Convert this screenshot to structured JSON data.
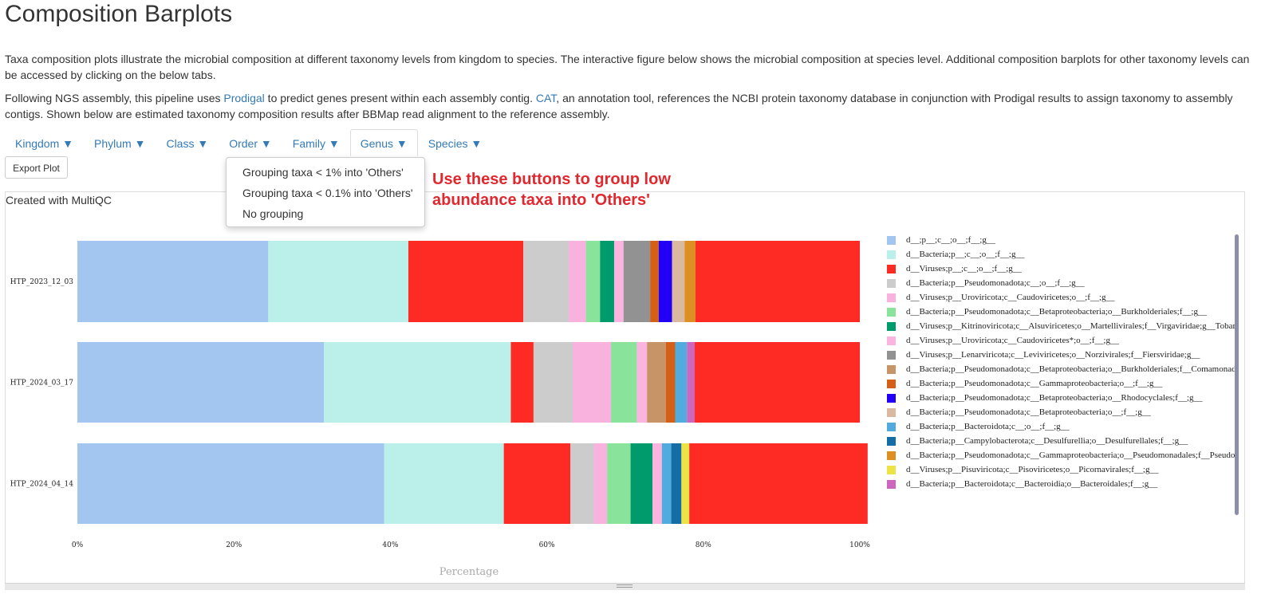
{
  "page": {
    "title": "Composition Barplots",
    "intro": "Taxa composition plots illustrate the microbial composition at different taxonomy levels from kingdom to species. The interactive figure below shows the microbial composition at species level. Additional composition barplots for other taxonomy levels can be accessed by clicking on the below tabs.",
    "method_before_prodigal": "Following NGS assembly, this pipeline uses ",
    "prodigal_link": "Prodigal",
    "method_mid": " to predict genes present within each assembly contig. ",
    "cat_link": "CAT",
    "method_after_cat": ", an annotation tool, references the NCBI protein taxonomy database in conjunction with Prodigal results to assign taxonomy to assembly contigs. Shown below are estimated taxonomy composition results after BBMap read alignment to the reference assembly."
  },
  "tabs": [
    {
      "label": "Kingdom ▼"
    },
    {
      "label": "Phylum ▼"
    },
    {
      "label": "Class ▼"
    },
    {
      "label": "Order ▼"
    },
    {
      "label": "Family ▼"
    },
    {
      "label": "Genus ▼",
      "active": true
    },
    {
      "label": "Species ▼"
    }
  ],
  "toolbar": {
    "export_label": "Export Plot"
  },
  "dropdown": {
    "items": [
      "Grouping taxa < 1% into 'Others'",
      "Grouping taxa < 0.1% into 'Others'",
      "No grouping"
    ]
  },
  "callout": {
    "text": "Use these buttons to group low abundance taxa into 'Others'",
    "color": "#e0282e"
  },
  "plot": {
    "created_with": "Created with MultiQC"
  },
  "chart_data": {
    "type": "bar",
    "orientation": "horizontal",
    "stacked": true,
    "xlabel": "Percentage",
    "xlim": [
      0,
      100
    ],
    "xticks": [
      "0%",
      "20%",
      "40%",
      "60%",
      "80%",
      "100%"
    ],
    "categories": [
      "HTP_2023_12_03",
      "HTP_2024_03_17",
      "HTP_2024_04_14"
    ],
    "legend_position": "right",
    "series": [
      {
        "name": "d__;p__;c__;o__;f__;g__",
        "color": "#a3c6f1",
        "values": [
          24.4,
          31.5,
          39.2
        ]
      },
      {
        "name": "d__Bacteria;p__;c__;o__;f__;g__",
        "color": "#bbefea",
        "values": [
          17.9,
          23.9,
          15.3
        ]
      },
      {
        "name": "d__Viruses;p__;c__;o__;f__;g__",
        "color": "#fe2b25",
        "values": [
          14.7,
          2.9,
          8.5
        ]
      },
      {
        "name": "d__Bacteria;p__Pseudomonadota;c__;o__;f__;g__",
        "color": "#cccccc",
        "values": [
          5.8,
          5.0,
          3.0
        ]
      },
      {
        "name": "d__Viruses;p__Uroviricota;c__Caudoviricetes;o__;f__;g__",
        "color": "#f9b1de",
        "values": [
          2.2,
          4.9,
          1.7
        ]
      },
      {
        "name": "d__Bacteria;p__Pseudomonadota;c__Betaproteobacteria;o__Burkholderiales;f__;g__",
        "color": "#8ae39a",
        "values": [
          1.8,
          3.3,
          3.0
        ]
      },
      {
        "name": "d__Viruses;p__Kitrinoviricota;c__Alsuviricetes;o__Martellivirales;f__Virgaviridae;g__Tobamovirus",
        "color": "#009b6d",
        "values": [
          1.8,
          0,
          2.8
        ]
      },
      {
        "name": "d__Viruses;p__Uroviricota;c__Caudoviricetes*;o__;f__;g__",
        "color": "#fbb3e0",
        "values": [
          1.2,
          1.3,
          1.2
        ]
      },
      {
        "name": "d__Viruses;p__Lenarviricota;c__Leviviricetes;o__Norzivirales;f__Fiersviridae;g__",
        "color": "#929292",
        "values": [
          3.4,
          0,
          0
        ]
      },
      {
        "name": "d__Bacteria;p__Pseudomonadota;c__Betaproteobacteria;o__Burkholderiales;f__Comamonadaceae;g__Rhodoferax",
        "color": "#c69466",
        "values": [
          0,
          2.4,
          0
        ]
      },
      {
        "name": "d__Bacteria;p__Pseudomonadota;c__Gammaproteobacteria;o__;f__;g__",
        "color": "#d45f17",
        "values": [
          1.1,
          1.2,
          0
        ]
      },
      {
        "name": "d__Bacteria;p__Pseudomonadota;c__Betaproteobacteria;o__Rhodocyclales;f__;g__",
        "color": "#2100f5",
        "values": [
          1.7,
          0,
          0
        ]
      },
      {
        "name": "d__Bacteria;p__Pseudomonadota;c__Betaproteobacteria;o__;f__;g__",
        "color": "#dbb9a0",
        "values": [
          1.6,
          0,
          0
        ]
      },
      {
        "name": "d__Bacteria;p__Bacteroidota;c__;o__;f__;g__",
        "color": "#52abdf",
        "values": [
          0,
          1.5,
          1.2
        ]
      },
      {
        "name": "d__Bacteria;p__Campylobacterota;c__Desulfurellia;o__Desulfurellales;f__;g__",
        "color": "#156da6",
        "values": [
          0,
          0,
          1.3
        ]
      },
      {
        "name": "d__Bacteria;p__Pseudomonadota;c__Gammaproteobacteria;o__Pseudomonadales;f__Pseudomonadaceae;g__Pseudomonas",
        "color": "#dd8f23",
        "values": [
          1.4,
          0,
          0
        ]
      },
      {
        "name": "d__Viruses;p__Pisuviricota;c__Pisoviricetes;o__Picornavirales;f__;g__",
        "color": "#ece445",
        "values": [
          0,
          0,
          1.0
        ]
      },
      {
        "name": "d__Bacteria;p__Bacteroidota;c__Bacteroidia;o__Bacteroidales;f__;g__",
        "color": "#cc66bf",
        "values": [
          0,
          1.0,
          0
        ]
      },
      {
        "name": "",
        "color": "#fe2b25",
        "values": [
          21.0,
          21.1,
          22.8
        ]
      }
    ]
  }
}
